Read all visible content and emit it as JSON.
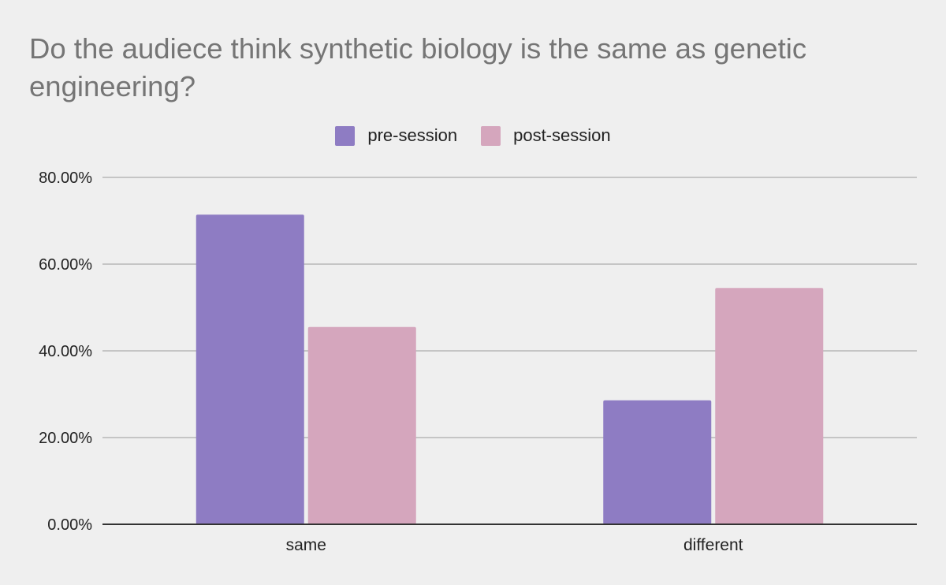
{
  "chart_data": {
    "type": "bar",
    "title": "Do the audiece think synthetic biology is the same as genetic engineering?",
    "categories": [
      "same",
      "different"
    ],
    "series": [
      {
        "name": "pre-session",
        "color": "#8e7cc3",
        "values": [
          71.4,
          28.6
        ]
      },
      {
        "name": "post-session",
        "color": "#d5a6bd",
        "values": [
          45.5,
          54.5
        ]
      }
    ],
    "yticks": [
      "0.00%",
      "20.00%",
      "40.00%",
      "60.00%",
      "80.00%"
    ],
    "ylim": [
      0,
      80
    ],
    "legend": "top-center",
    "grid": true
  }
}
